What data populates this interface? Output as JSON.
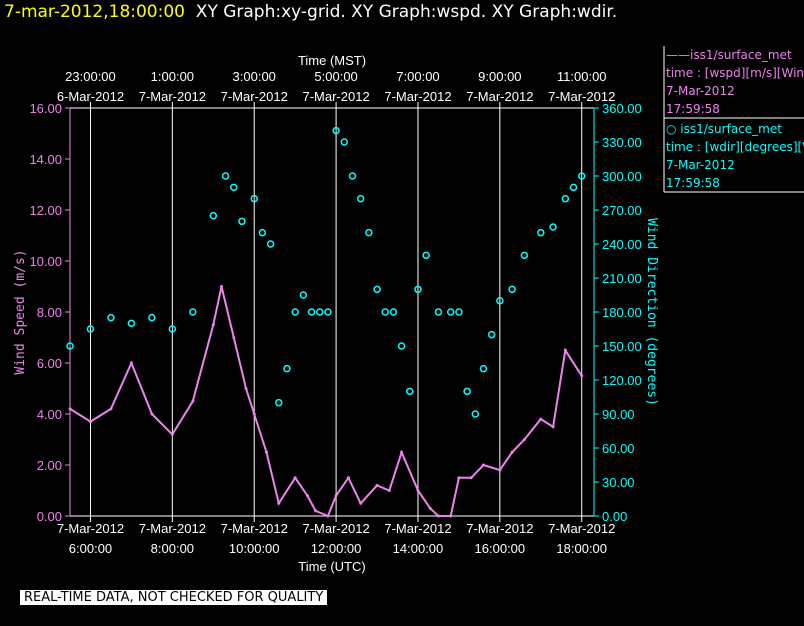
{
  "header": {
    "timestamp": "7-mar-2012,18:00:00",
    "titles": "XY Graph:xy-grid.  XY Graph:wspd.  XY Graph:wdir."
  },
  "legend": {
    "wspd": {
      "line1": "——iss1/surface_met",
      "line2": "time : [wspd][m/s][Wind",
      "line3": "7-Mar-2012",
      "line4": "17:59:58",
      "color": "#ee82ee"
    },
    "wdir": {
      "line1": "○ iss1/surface_met",
      "line2": "time : [wdir][degrees][W",
      "line3": "7-Mar-2012",
      "line4": "17:59:58",
      "color": "#00ffff"
    }
  },
  "disclaimer": "REAL-TIME DATA, NOT CHECKED FOR QUALITY",
  "chart_data": {
    "type": "line",
    "x_top_label": "Time (MST)",
    "x_bottom_label": "Time (UTC)",
    "x_range_utc_hours": [
      5.5,
      18.3
    ],
    "x_ticks_bottom": [
      {
        "h": 6,
        "l1": "7-Mar-2012",
        "l2": "6:00:00"
      },
      {
        "h": 8,
        "l1": "7-Mar-2012",
        "l2": "8:00:00"
      },
      {
        "h": 10,
        "l1": "7-Mar-2012",
        "l2": "10:00:00"
      },
      {
        "h": 12,
        "l1": "7-Mar-2012",
        "l2": "12:00:00"
      },
      {
        "h": 14,
        "l1": "7-Mar-2012",
        "l2": "14:00:00"
      },
      {
        "h": 16,
        "l1": "7-Mar-2012",
        "l2": "16:00:00"
      },
      {
        "h": 18,
        "l1": "7-Mar-2012",
        "l2": "18:00:00"
      }
    ],
    "x_ticks_top": [
      {
        "h": 6,
        "l1": "23:00:00",
        "l2": "6-Mar-2012"
      },
      {
        "h": 8,
        "l1": "1:00:00",
        "l2": "7-Mar-2012"
      },
      {
        "h": 10,
        "l1": "3:00:00",
        "l2": "7-Mar-2012"
      },
      {
        "h": 12,
        "l1": "5:00:00",
        "l2": "7-Mar-2012"
      },
      {
        "h": 14,
        "l1": "7:00:00",
        "l2": "7-Mar-2012"
      },
      {
        "h": 16,
        "l1": "9:00:00",
        "l2": "7-Mar-2012"
      },
      {
        "h": 18,
        "l1": "11:00:00",
        "l2": "7-Mar-2012"
      }
    ],
    "y_left": {
      "label": "Wind Speed (m/s)",
      "range": [
        0,
        16
      ],
      "ticks": [
        "0.00",
        "2.00",
        "4.00",
        "6.00",
        "8.00",
        "10.00",
        "12.00",
        "14.00",
        "16.00"
      ]
    },
    "y_right": {
      "label": "Wind Direction (degrees)",
      "range": [
        0,
        360
      ],
      "ticks": [
        "0.00",
        "30.00",
        "60.00",
        "90.00",
        "120.00",
        "150.00",
        "180.00",
        "210.00",
        "240.00",
        "270.00",
        "300.00",
        "330.00",
        "360.00"
      ]
    },
    "grid": "vertical",
    "series": [
      {
        "key": "wspd",
        "axis": "left",
        "style": "line",
        "color": "#ee82ee",
        "x": [
          5.5,
          6.0,
          6.5,
          7.0,
          7.5,
          8.0,
          8.5,
          9.0,
          9.2,
          9.5,
          9.8,
          10.0,
          10.3,
          10.6,
          11.0,
          11.3,
          11.5,
          11.8,
          12.0,
          12.3,
          12.6,
          13.0,
          13.3,
          13.6,
          14.0,
          14.3,
          14.5,
          14.8,
          15.0,
          15.3,
          15.6,
          16.0,
          16.3,
          16.6,
          17.0,
          17.3,
          17.6,
          18.0
        ],
        "y": [
          4.2,
          3.7,
          4.2,
          6.0,
          4.0,
          3.2,
          4.5,
          7.5,
          9.0,
          7.0,
          5.0,
          4.0,
          2.5,
          0.5,
          1.5,
          0.8,
          0.2,
          0.0,
          0.8,
          1.5,
          0.5,
          1.2,
          1.0,
          2.5,
          1.0,
          0.3,
          0.0,
          0.0,
          1.5,
          1.5,
          2.0,
          1.8,
          2.5,
          3.0,
          3.8,
          3.5,
          6.5,
          5.5
        ]
      },
      {
        "key": "wdir",
        "axis": "right",
        "style": "circle",
        "color": "#00ffff",
        "x": [
          5.5,
          6.0,
          6.5,
          7.0,
          7.5,
          8.0,
          8.5,
          9.0,
          9.3,
          9.5,
          9.7,
          10.0,
          10.2,
          10.4,
          10.6,
          10.8,
          11.0,
          11.2,
          11.4,
          11.6,
          11.8,
          12.0,
          12.2,
          12.4,
          12.6,
          12.8,
          13.0,
          13.2,
          13.4,
          13.6,
          13.8,
          14.0,
          14.2,
          14.5,
          14.8,
          15.0,
          15.2,
          15.4,
          15.6,
          15.8,
          16.0,
          16.3,
          16.6,
          17.0,
          17.3,
          17.6,
          17.8,
          18.0
        ],
        "y": [
          150,
          165,
          175,
          170,
          175,
          165,
          180,
          265,
          300,
          290,
          260,
          280,
          250,
          240,
          100,
          130,
          180,
          195,
          180,
          180,
          180,
          340,
          330,
          300,
          280,
          250,
          200,
          180,
          180,
          150,
          110,
          200,
          230,
          180,
          180,
          180,
          110,
          90,
          130,
          160,
          190,
          200,
          230,
          250,
          255,
          280,
          290,
          300
        ]
      }
    ]
  }
}
